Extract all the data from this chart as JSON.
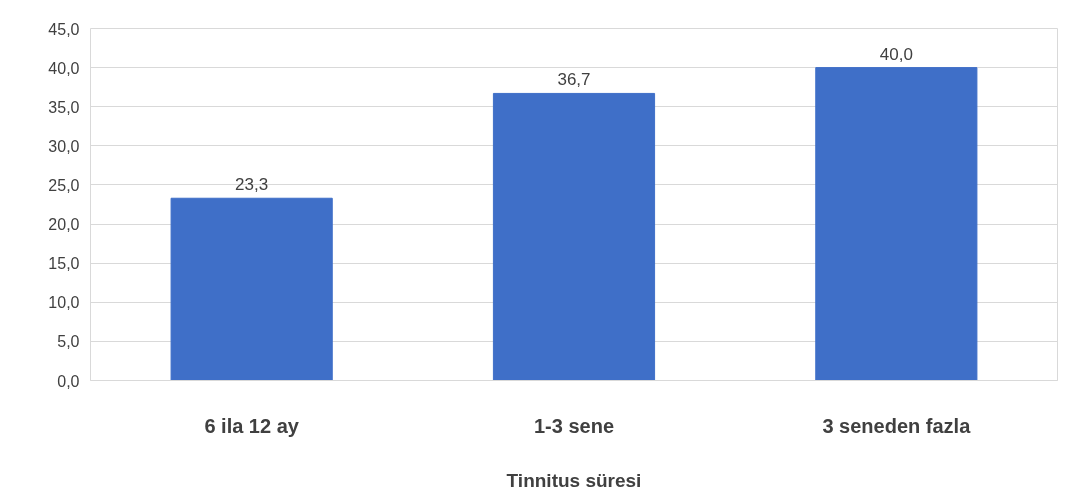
{
  "chart_data": {
    "type": "bar",
    "xlabel": "Tinnitus süresi",
    "categories": [
      "6 ila 12 ay",
      "1-3 sene",
      "3 seneden fazla"
    ],
    "values": [
      23.3,
      36.7,
      40.0
    ],
    "value_labels": [
      "23,3",
      "36,7",
      "40,0"
    ],
    "color": "#3f6fc8",
    "ylim": [
      0,
      45
    ],
    "yticks": [
      {
        "value": 0,
        "label": "0,0"
      },
      {
        "value": 5,
        "label": "5,0"
      },
      {
        "value": 10,
        "label": "10,0"
      },
      {
        "value": 15,
        "label": "15,0"
      },
      {
        "value": 20,
        "label": "20,0"
      },
      {
        "value": 25,
        "label": "25,0"
      },
      {
        "value": 30,
        "label": "30,0"
      },
      {
        "value": 35,
        "label": "35,0"
      },
      {
        "value": 40,
        "label": "40,0"
      },
      {
        "value": 45,
        "label": "45,0"
      }
    ],
    "grid": "y"
  }
}
